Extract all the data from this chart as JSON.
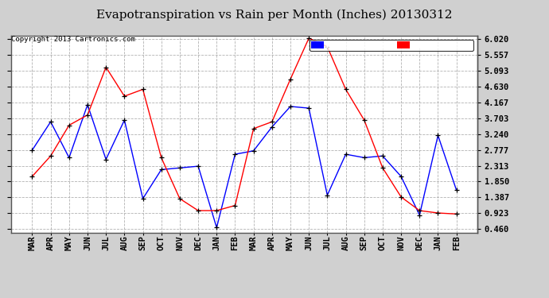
{
  "title": "Evapotranspiration vs Rain per Month (Inches) 20130312",
  "copyright": "Copyright 2013 Cartronics.com",
  "months": [
    "MAR",
    "APR",
    "MAY",
    "JUN",
    "JUL",
    "AUG",
    "SEP",
    "OCT",
    "NOV",
    "DEC",
    "JAN",
    "FEB",
    "MAR",
    "APR",
    "MAY",
    "JUN",
    "JUL",
    "AUG",
    "SEP",
    "OCT",
    "NOV",
    "DEC",
    "JAN",
    "FEB"
  ],
  "rain": [
    2.77,
    3.6,
    2.55,
    4.1,
    2.5,
    3.65,
    1.35,
    2.2,
    2.25,
    2.3,
    0.5,
    2.65,
    2.75,
    3.45,
    4.05,
    4.0,
    1.45,
    2.65,
    2.55,
    2.6,
    2.0,
    0.87,
    3.2,
    1.6
  ],
  "et": [
    2.0,
    2.6,
    3.5,
    3.8,
    5.2,
    4.35,
    4.55,
    2.55,
    1.35,
    1.0,
    1.0,
    1.15,
    3.4,
    3.6,
    4.85,
    6.05,
    5.8,
    4.55,
    3.65,
    2.25,
    1.4,
    1.0,
    0.93,
    0.9
  ],
  "rain_color": "#0000ff",
  "et_color": "#ff0000",
  "bg_color": "#d0d0d0",
  "plot_bg_color": "#ffffff",
  "grid_color": "#aaaaaa",
  "yticks": [
    0.46,
    0.923,
    1.387,
    1.85,
    2.313,
    2.777,
    3.24,
    3.703,
    4.167,
    4.63,
    5.093,
    5.557,
    6.02
  ],
  "ylim_min": 0.36,
  "ylim_max": 6.12,
  "title_fontsize": 11,
  "tick_fontsize": 7.5,
  "copyright_fontsize": 6.5,
  "legend_fontsize": 7.5
}
